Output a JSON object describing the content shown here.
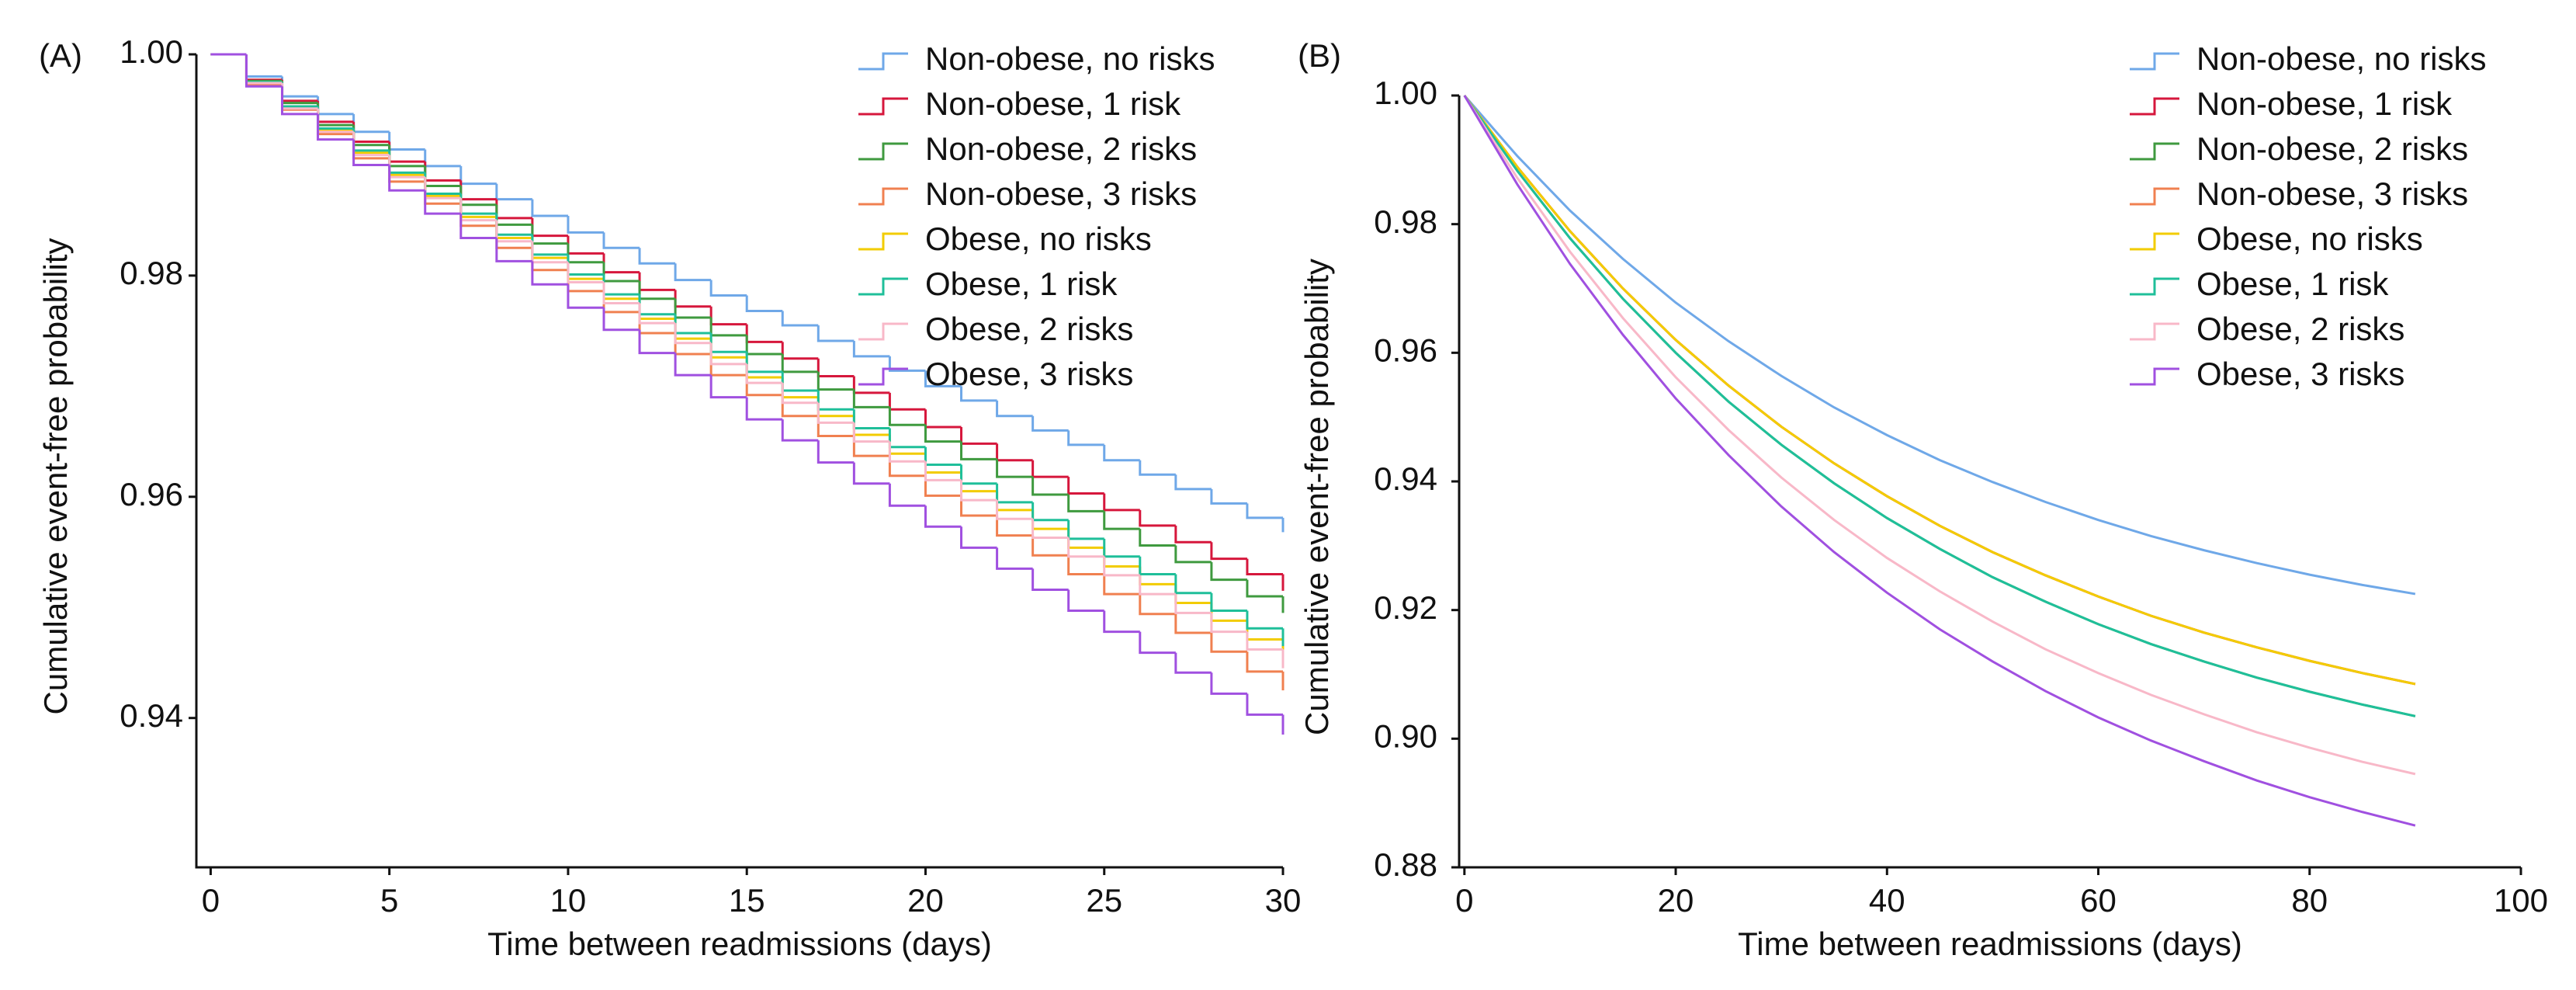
{
  "chart_data": [
    {
      "type": "step",
      "panel_label": "(A)",
      "xlabel": "Time between readmissions (days)",
      "ylabel": "Cumulative event-free probability",
      "x": [
        0,
        1,
        2,
        3,
        4,
        5,
        6,
        7,
        8,
        9,
        10,
        11,
        12,
        13,
        14,
        15,
        16,
        17,
        18,
        19,
        20,
        21,
        22,
        23,
        24,
        25,
        26,
        27,
        28,
        29,
        30
      ],
      "xlim": [
        -0.4,
        30
      ],
      "xticks": [
        0,
        5,
        10,
        15,
        20,
        25,
        30
      ],
      "ylim": [
        0.9265,
        1.0
      ],
      "yticks": [
        0.94,
        0.96,
        0.98,
        {
          "value": 1,
          "label": "1.00"
        }
      ],
      "legend": "upper right",
      "series": [
        {
          "name": "Non-obese, no risks",
          "color": "#6fa8e8",
          "values": [
            1,
            0.998,
            0.9962,
            0.9946,
            0.993,
            0.9914,
            0.9899,
            0.9883,
            0.9869,
            0.9854,
            0.9839,
            0.9825,
            0.9811,
            0.9796,
            0.9782,
            0.9768,
            0.9755,
            0.9741,
            0.9727,
            0.9714,
            0.97,
            0.9687,
            0.9673,
            0.966,
            0.9647,
            0.9633,
            0.962,
            0.9607,
            0.9594,
            0.9581,
            0.9568
          ]
        },
        {
          "name": "Non-obese, 1 risk",
          "color": "#d6173c",
          "values": [
            1,
            0.9977,
            0.9958,
            0.9939,
            0.9921,
            0.9903,
            0.9886,
            0.9869,
            0.9852,
            0.9836,
            0.982,
            0.9803,
            0.9787,
            0.9772,
            0.9756,
            0.974,
            0.9725,
            0.9709,
            0.9694,
            0.9679,
            0.9663,
            0.9648,
            0.9633,
            0.9618,
            0.9603,
            0.9588,
            0.9574,
            0.9559,
            0.9544,
            0.953,
            0.9515
          ]
        },
        {
          "name": "Non-obese, 2 risks",
          "color": "#3f9a3f",
          "values": [
            1,
            0.9976,
            0.9956,
            0.9936,
            0.9918,
            0.9899,
            0.9881,
            0.9864,
            0.9846,
            0.9829,
            0.9812,
            0.9795,
            0.9779,
            0.9762,
            0.9746,
            0.9729,
            0.9713,
            0.9697,
            0.9681,
            0.9665,
            0.965,
            0.9634,
            0.9618,
            0.9602,
            0.9587,
            0.9571,
            0.9556,
            0.9541,
            0.9525,
            0.951,
            0.9495
          ]
        },
        {
          "name": "Non-obese, 3 risks",
          "color": "#f08050",
          "values": [
            1,
            0.9973,
            0.995,
            0.9928,
            0.9906,
            0.9885,
            0.9865,
            0.9845,
            0.9825,
            0.9805,
            0.9786,
            0.9767,
            0.9748,
            0.9729,
            0.971,
            0.9692,
            0.9673,
            0.9655,
            0.9637,
            0.9619,
            0.9601,
            0.9583,
            0.9565,
            0.9547,
            0.953,
            0.9512,
            0.9494,
            0.9477,
            0.946,
            0.9442,
            0.9425
          ]
        },
        {
          "name": "Obese, no risks",
          "color": "#f2cc00",
          "values": [
            1,
            0.9975,
            0.9952,
            0.9931,
            0.9911,
            0.9891,
            0.9872,
            0.9853,
            0.9834,
            0.9816,
            0.9797,
            0.9779,
            0.9761,
            0.9743,
            0.9726,
            0.9708,
            0.969,
            0.9673,
            0.9656,
            0.9639,
            0.9622,
            0.9605,
            0.9588,
            0.9571,
            0.9554,
            0.9537,
            0.9521,
            0.9504,
            0.9488,
            0.9471,
            0.9455
          ]
        },
        {
          "name": "Obese, 1 risk",
          "color": "#1fbf9a",
          "values": [
            1,
            0.9975,
            0.9953,
            0.9933,
            0.9913,
            0.9893,
            0.9874,
            0.9856,
            0.9837,
            0.9819,
            0.9801,
            0.9783,
            0.9765,
            0.9748,
            0.9731,
            0.9713,
            0.9696,
            0.9679,
            0.9662,
            0.9645,
            0.9629,
            0.9612,
            0.9595,
            0.9579,
            0.9562,
            0.9546,
            0.953,
            0.9513,
            0.9497,
            0.9481,
            0.9465
          ]
        },
        {
          "name": "Obese, 2 risks",
          "color": "#f8b8c8",
          "values": [
            1,
            0.9974,
            0.9951,
            0.993,
            0.9909,
            0.9889,
            0.987,
            0.985,
            0.9831,
            0.9812,
            0.9794,
            0.9775,
            0.9757,
            0.9739,
            0.972,
            0.9703,
            0.9685,
            0.9667,
            0.965,
            0.9632,
            0.9615,
            0.9597,
            0.958,
            0.9563,
            0.9546,
            0.9529,
            0.9512,
            0.9495,
            0.9478,
            0.9462,
            0.9445
          ]
        },
        {
          "name": "Obese, 3 risks",
          "color": "#a050e0",
          "values": [
            1,
            0.9971,
            0.9946,
            0.9923,
            0.99,
            0.9877,
            0.9856,
            0.9834,
            0.9813,
            0.9792,
            0.9771,
            0.9751,
            0.973,
            0.971,
            0.969,
            0.967,
            0.9651,
            0.9631,
            0.9612,
            0.9592,
            0.9573,
            0.9554,
            0.9535,
            0.9516,
            0.9497,
            0.9478,
            0.9459,
            0.9441,
            0.9422,
            0.9403,
            0.9385
          ]
        }
      ]
    },
    {
      "type": "line",
      "panel_label": "(B)",
      "xlabel": "Time between readmissions (days)",
      "ylabel": "Cumulative event-free probability",
      "x": [
        0,
        5,
        10,
        15,
        20,
        25,
        30,
        35,
        40,
        45,
        50,
        55,
        60,
        65,
        70,
        75,
        80,
        85,
        90
      ],
      "xlim": [
        -0.5,
        100
      ],
      "xticks": [
        0,
        20,
        40,
        60,
        80,
        100
      ],
      "ylim": [
        0.88,
        1.0
      ],
      "yticks": [
        0.88,
        {
          "value": 0.9,
          "label": "0.90"
        },
        0.92,
        0.94,
        0.96,
        0.98,
        {
          "value": 1,
          "label": "1.00"
        }
      ],
      "legend": "upper right",
      "series": [
        {
          "name": "Non-obese, no risks",
          "color": "#6fa8e8",
          "values": [
            1,
            0.9906,
            0.9821,
            0.9746,
            0.9678,
            0.9618,
            0.9564,
            0.9515,
            0.9472,
            0.9433,
            0.9399,
            0.9368,
            0.934,
            0.9315,
            0.9293,
            0.9273,
            0.9255,
            0.9239,
            0.9225
          ]
        },
        {
          "name": "Non-obese, 1 risk",
          "color": "#d6173c",
          "values": [
            1,
            0.9889,
            0.9789,
            0.97,
            0.962,
            0.9549,
            0.9485,
            0.9428,
            0.9377,
            0.9331,
            0.929,
            0.9254,
            0.9221,
            0.9191,
            0.9165,
            0.9142,
            0.9121,
            0.9102,
            0.9085
          ]
        },
        {
          "name": "Non-obese, 2 risks",
          "color": "#3f9a3f",
          "values": [
            1,
            0.9883,
            0.9778,
            0.9684,
            0.96,
            0.9524,
            0.9457,
            0.9397,
            0.9343,
            0.9295,
            0.9251,
            0.9213,
            0.9178,
            0.9147,
            0.912,
            0.9095,
            0.9073,
            0.9053,
            0.9035
          ]
        },
        {
          "name": "Non-obese, 3 risks",
          "color": "#f08050",
          "values": [
            1,
            0.9889,
            0.9789,
            0.97,
            0.962,
            0.9549,
            0.9485,
            0.9428,
            0.9377,
            0.9331,
            0.929,
            0.9254,
            0.9221,
            0.9191,
            0.9165,
            0.9142,
            0.9121,
            0.9102,
            0.9085
          ]
        },
        {
          "name": "Obese, no risks",
          "color": "#f2cc00",
          "values": [
            1,
            0.9889,
            0.9789,
            0.97,
            0.962,
            0.9549,
            0.9485,
            0.9428,
            0.9377,
            0.9331,
            0.929,
            0.9254,
            0.9221,
            0.9191,
            0.9165,
            0.9142,
            0.9121,
            0.9102,
            0.9085
          ]
        },
        {
          "name": "Obese, 1 risk",
          "color": "#1fbf9a",
          "values": [
            1,
            0.9883,
            0.9778,
            0.9684,
            0.96,
            0.9524,
            0.9457,
            0.9397,
            0.9343,
            0.9295,
            0.9251,
            0.9213,
            0.9178,
            0.9147,
            0.912,
            0.9095,
            0.9073,
            0.9053,
            0.9035
          ]
        },
        {
          "name": "Obese, 2 risks",
          "color": "#f8b8c8",
          "values": [
            1,
            0.9872,
            0.9757,
            0.9654,
            0.9562,
            0.948,
            0.9406,
            0.934,
            0.9281,
            0.9229,
            0.9182,
            0.9139,
            0.9102,
            0.9068,
            0.9038,
            0.901,
            0.8986,
            0.8964,
            0.8945
          ]
        },
        {
          "name": "Obese, 3 risks",
          "color": "#a050e0",
          "values": [
            1,
            0.9862,
            0.9738,
            0.9628,
            0.9529,
            0.9441,
            0.9361,
            0.929,
            0.9227,
            0.917,
            0.912,
            0.9074,
            0.9033,
            0.8997,
            0.8965,
            0.8935,
            0.8909,
            0.8886,
            0.8865
          ]
        }
      ]
    }
  ]
}
